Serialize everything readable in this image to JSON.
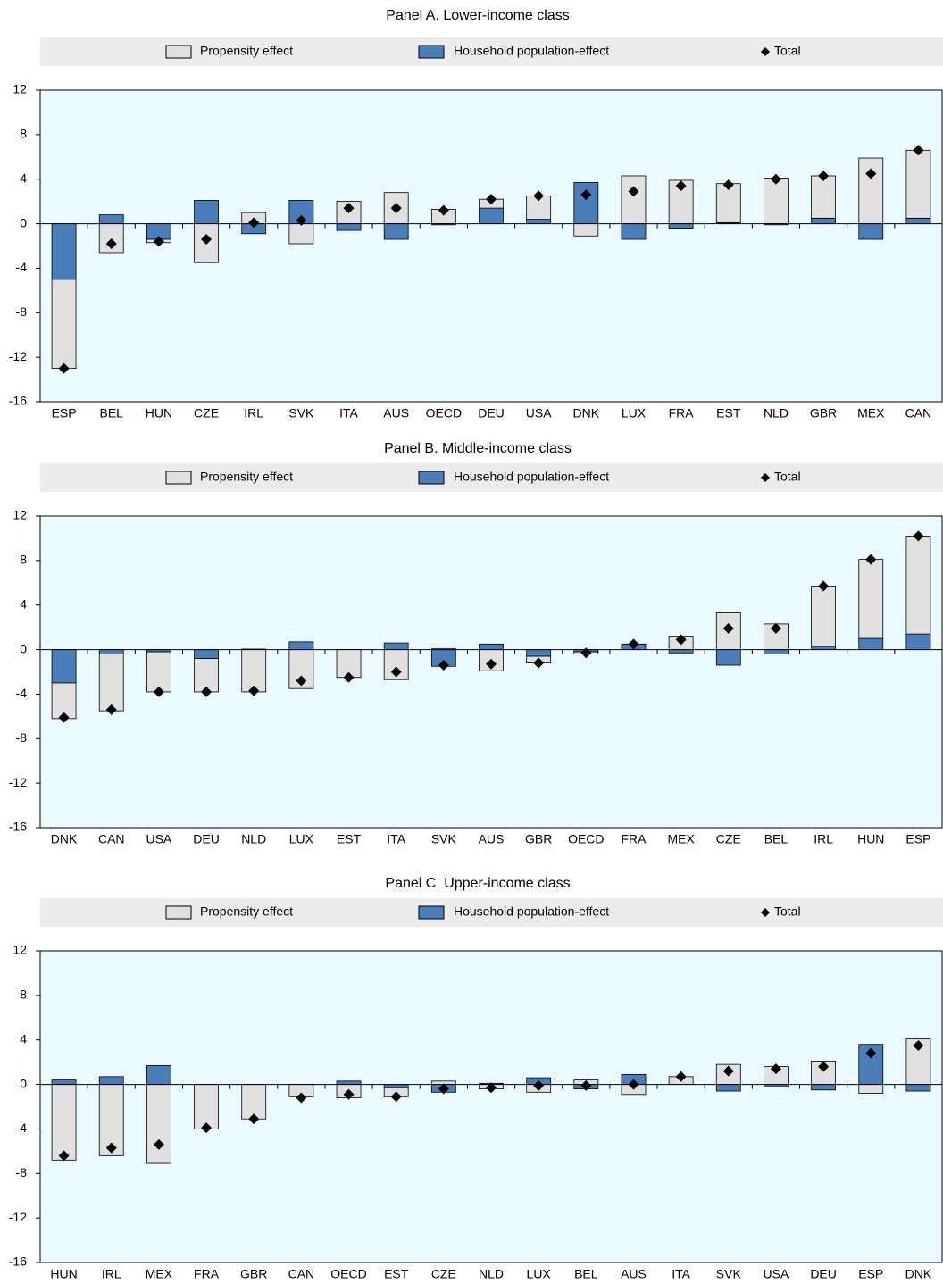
{
  "chart_data": [
    {
      "type": "bar",
      "stacked": true,
      "title": "Panel A. Lower-income class",
      "categories": [
        "ESP",
        "BEL",
        "HUN",
        "CZE",
        "IRL",
        "SVK",
        "ITA",
        "AUS",
        "OECD",
        "DEU",
        "USA",
        "DNK",
        "LUX",
        "FRA",
        "EST",
        "NLD",
        "GBR",
        "MEX",
        "CAN"
      ],
      "series": [
        {
          "name": "Propensity effect",
          "color": "#e0e0e0",
          "values": [
            -8,
            -2.6,
            -0.3,
            -3.5,
            1.0,
            -1.8,
            2.0,
            2.8,
            1.3,
            0.8,
            2.1,
            -1.1,
            4.3,
            3.9,
            3.5,
            4.1,
            3.8,
            5.9,
            6.1
          ]
        },
        {
          "name": "Household population-effect",
          "color": "#4a7ebb",
          "values": [
            -5,
            0.8,
            -1.4,
            2.1,
            -0.9,
            2.1,
            -0.6,
            -1.4,
            -0.1,
            1.4,
            0.4,
            3.7,
            -1.4,
            -0.4,
            0.1,
            -0.1,
            0.5,
            -1.4,
            0.5
          ]
        },
        {
          "name": "Total",
          "color": "#000000",
          "marker": "diamond",
          "values": [
            -13,
            -1.8,
            -1.6,
            -1.4,
            0.1,
            0.3,
            1.4,
            1.4,
            1.2,
            2.2,
            2.5,
            2.6,
            2.9,
            3.4,
            3.5,
            4.0,
            4.3,
            4.5,
            6.6
          ]
        }
      ],
      "ylim": [
        -16,
        12
      ],
      "yticks": [
        -16,
        -12,
        -8,
        -4,
        0,
        4,
        8,
        12
      ],
      "background": "#ebfafe"
    },
    {
      "type": "bar",
      "stacked": true,
      "title": "Panel B. Middle-income class",
      "categories": [
        "DNK",
        "CAN",
        "USA",
        "DEU",
        "NLD",
        "LUX",
        "EST",
        "ITA",
        "SVK",
        "AUS",
        "GBR",
        "OECD",
        "FRA",
        "MEX",
        "CZE",
        "BEL",
        "IRL",
        "HUN",
        "ESP"
      ],
      "series": [
        {
          "name": "Propensity effect",
          "color": "#e0e0e0",
          "values": [
            -3.2,
            -5.1,
            -3.6,
            -3.0,
            -3.8,
            -3.5,
            -2.5,
            -2.7,
            0.1,
            -1.9,
            -0.6,
            -0.2,
            0,
            1.2,
            3.3,
            2.3,
            5.4,
            7.1,
            8.8
          ]
        },
        {
          "name": "Household population-effect",
          "color": "#4a7ebb",
          "values": [
            -3.0,
            -0.4,
            -0.2,
            -0.8,
            0.05,
            0.7,
            0,
            0.6,
            -1.5,
            0.5,
            -0.6,
            -0.2,
            0.5,
            -0.3,
            -1.4,
            -0.4,
            0.3,
            1.0,
            1.4
          ]
        },
        {
          "name": "Total",
          "color": "#000000",
          "marker": "diamond",
          "values": [
            -6.1,
            -5.4,
            -3.8,
            -3.8,
            -3.7,
            -2.8,
            -2.5,
            -2.0,
            -1.4,
            -1.3,
            -1.2,
            -0.3,
            0.5,
            0.9,
            1.9,
            1.9,
            5.7,
            8.1,
            10.2
          ]
        }
      ],
      "ylim": [
        -16,
        12
      ],
      "yticks": [
        -16,
        -12,
        -8,
        -4,
        0,
        4,
        8,
        12
      ],
      "background": "#ebfafe"
    },
    {
      "type": "bar",
      "stacked": true,
      "title": "Panel C. Upper-income class",
      "categories": [
        "HUN",
        "IRL",
        "MEX",
        "FRA",
        "GBR",
        "CAN",
        "OECD",
        "EST",
        "CZE",
        "NLD",
        "LUX",
        "BEL",
        "AUS",
        "ITA",
        "SVK",
        "USA",
        "DEU",
        "ESP",
        "DNK"
      ],
      "series": [
        {
          "name": "Propensity effect",
          "color": "#e0e0e0",
          "values": [
            -6.8,
            -6.4,
            -7.1,
            -4.0,
            -3.1,
            -1.1,
            -1.2,
            -0.8,
            0.3,
            -0.4,
            -0.7,
            0.4,
            -0.9,
            0.7,
            1.8,
            1.6,
            2.1,
            -0.8,
            4.1
          ]
        },
        {
          "name": "Household population-effect",
          "color": "#4a7ebb",
          "values": [
            0.4,
            0.7,
            1.7,
            0,
            0,
            0,
            0.3,
            -0.3,
            -0.7,
            0.1,
            0.6,
            -0.4,
            0.9,
            0,
            -0.6,
            -0.2,
            -0.5,
            3.6,
            -0.6
          ]
        },
        {
          "name": "Total",
          "color": "#000000",
          "marker": "diamond",
          "values": [
            -6.4,
            -5.7,
            -5.4,
            -3.9,
            -3.1,
            -1.2,
            -0.9,
            -1.1,
            -0.4,
            -0.3,
            -0.1,
            -0.1,
            0,
            0.7,
            1.2,
            1.4,
            1.6,
            2.8,
            3.5
          ]
        }
      ],
      "ylim": [
        -16,
        12
      ],
      "yticks": [
        -16,
        -12,
        -8,
        -4,
        0,
        4,
        8,
        12
      ],
      "background": "#ebfafe"
    }
  ]
}
